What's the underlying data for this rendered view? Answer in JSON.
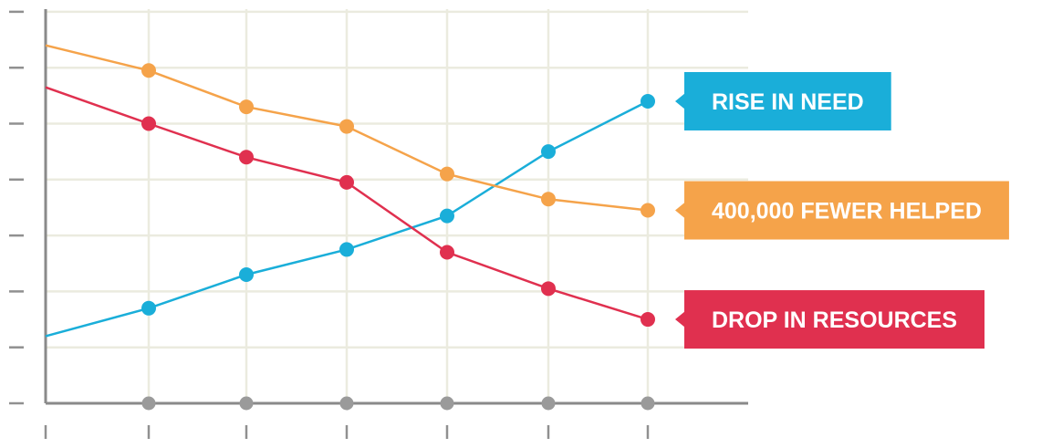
{
  "chart_data": {
    "type": "line",
    "title": "",
    "xlabel": "",
    "ylabel": "",
    "grid": true,
    "x": [
      0,
      1,
      2,
      3,
      4,
      5,
      6
    ],
    "ylim": [
      0,
      7
    ],
    "series": [
      {
        "name": "RISE IN NEED",
        "color": "#1aaed9",
        "values": [
          1.2,
          1.7,
          2.3,
          2.75,
          3.35,
          4.5,
          5.4
        ],
        "markers": [
          false,
          true,
          true,
          true,
          true,
          true,
          true
        ]
      },
      {
        "name": "400,000 FEWER HELPED",
        "color": "#f5a34a",
        "values": [
          6.4,
          5.95,
          5.3,
          4.95,
          4.1,
          3.65,
          3.45
        ],
        "markers": [
          false,
          true,
          true,
          true,
          true,
          true,
          true
        ]
      },
      {
        "name": "DROP IN RESOURCES",
        "color": "#e0304f",
        "values": [
          5.65,
          5.0,
          4.4,
          3.95,
          2.7,
          2.05,
          1.5
        ],
        "markers": [
          false,
          true,
          true,
          true,
          true,
          true,
          true
        ]
      }
    ],
    "x_axis_markers": [
      1,
      2,
      3,
      4,
      5,
      6
    ],
    "legend": "right, callout labels at series ends"
  }
}
